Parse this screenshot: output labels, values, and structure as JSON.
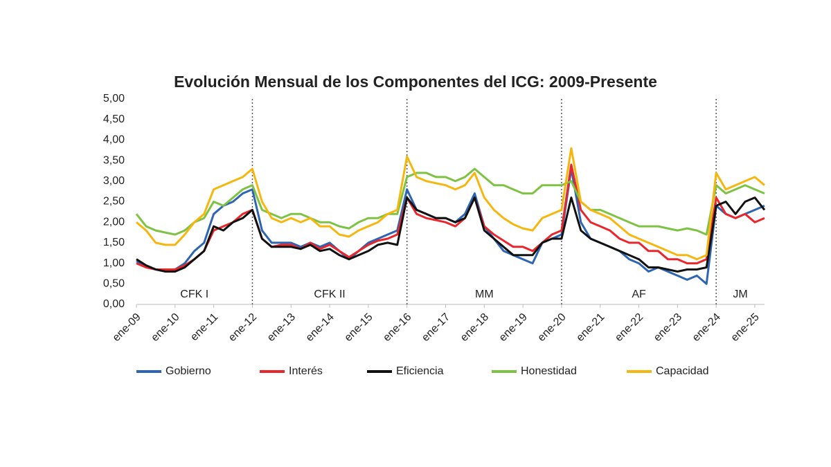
{
  "chart_data": {
    "type": "line",
    "title": "Evolución Mensual de los Componentes del ICG: 2009-Presente",
    "categories": [
      "ene-09",
      null,
      null,
      null,
      "ene-10",
      null,
      null,
      null,
      "ene-11",
      null,
      null,
      null,
      "ene-12",
      null,
      null,
      null,
      "ene-13",
      null,
      null,
      null,
      "ene-14",
      null,
      null,
      null,
      "ene-15",
      null,
      null,
      null,
      "ene-16",
      null,
      null,
      null,
      "ene-17",
      null,
      null,
      null,
      "ene-18",
      null,
      null,
      null,
      "ene-19",
      null,
      null,
      null,
      "ene-20",
      null,
      null,
      null,
      "ene-21",
      null,
      null,
      null,
      "ene-22",
      null,
      null,
      null,
      "ene-23",
      null,
      null,
      null,
      "ene-24",
      null,
      null,
      null,
      "ene-25",
      null
    ],
    "series": [
      {
        "name": "Gobierno",
        "color": "#2e64b4",
        "values": [
          1.05,
          0.95,
          0.85,
          0.85,
          0.85,
          1.0,
          1.3,
          1.5,
          2.2,
          2.4,
          2.5,
          2.7,
          2.8,
          1.8,
          1.5,
          1.5,
          1.5,
          1.4,
          1.5,
          1.4,
          1.5,
          1.3,
          1.1,
          1.3,
          1.5,
          1.6,
          1.7,
          1.8,
          2.8,
          2.3,
          2.2,
          2.1,
          2.1,
          2.0,
          2.2,
          2.7,
          1.9,
          1.6,
          1.3,
          1.2,
          1.1,
          1.0,
          1.5,
          1.6,
          1.7,
          3.3,
          2.0,
          1.6,
          1.5,
          1.4,
          1.3,
          1.1,
          1.0,
          0.8,
          0.9,
          0.8,
          0.7,
          0.6,
          0.7,
          0.5,
          2.4,
          2.2,
          2.1,
          2.2,
          2.3,
          2.4
        ]
      },
      {
        "name": "Interés",
        "color": "#e8262b",
        "values": [
          1.0,
          0.9,
          0.85,
          0.85,
          0.85,
          0.95,
          1.1,
          1.3,
          1.8,
          1.9,
          2.0,
          2.2,
          2.3,
          1.6,
          1.4,
          1.45,
          1.45,
          1.35,
          1.5,
          1.35,
          1.45,
          1.3,
          1.15,
          1.3,
          1.45,
          1.55,
          1.6,
          1.7,
          2.6,
          2.2,
          2.1,
          2.05,
          2.0,
          1.9,
          2.1,
          2.6,
          1.9,
          1.7,
          1.55,
          1.4,
          1.4,
          1.3,
          1.5,
          1.7,
          1.8,
          3.4,
          2.3,
          2.0,
          1.9,
          1.8,
          1.6,
          1.5,
          1.5,
          1.3,
          1.3,
          1.1,
          1.1,
          1.0,
          1.0,
          1.1,
          2.6,
          2.2,
          2.1,
          2.2,
          2.0,
          2.1
        ]
      },
      {
        "name": "Eficiencia",
        "color": "#111111",
        "values": [
          1.1,
          0.95,
          0.85,
          0.8,
          0.8,
          0.9,
          1.1,
          1.3,
          1.9,
          1.8,
          2.0,
          2.1,
          2.3,
          1.6,
          1.4,
          1.4,
          1.4,
          1.35,
          1.45,
          1.3,
          1.35,
          1.2,
          1.1,
          1.2,
          1.3,
          1.45,
          1.5,
          1.45,
          2.6,
          2.3,
          2.2,
          2.1,
          2.1,
          2.0,
          2.1,
          2.6,
          1.8,
          1.6,
          1.4,
          1.2,
          1.2,
          1.2,
          1.5,
          1.6,
          1.6,
          2.6,
          1.8,
          1.6,
          1.5,
          1.4,
          1.3,
          1.2,
          1.1,
          0.9,
          0.9,
          0.85,
          0.8,
          0.85,
          0.85,
          0.9,
          2.4,
          2.5,
          2.2,
          2.5,
          2.6,
          2.3
        ]
      },
      {
        "name": "Honestidad",
        "color": "#7dc242",
        "values": [
          2.2,
          1.9,
          1.8,
          1.75,
          1.7,
          1.8,
          2.0,
          2.1,
          2.5,
          2.4,
          2.6,
          2.8,
          2.9,
          2.3,
          2.2,
          2.1,
          2.2,
          2.2,
          2.1,
          2.0,
          2.0,
          1.9,
          1.85,
          2.0,
          2.1,
          2.1,
          2.2,
          2.2,
          3.1,
          3.2,
          3.2,
          3.1,
          3.1,
          3.0,
          3.1,
          3.3,
          3.1,
          2.9,
          2.9,
          2.8,
          2.7,
          2.7,
          2.9,
          2.9,
          2.9,
          3.0,
          2.5,
          2.3,
          2.3,
          2.2,
          2.1,
          2.0,
          1.9,
          1.9,
          1.9,
          1.85,
          1.8,
          1.85,
          1.8,
          1.7,
          2.9,
          2.7,
          2.8,
          2.9,
          2.8,
          2.7
        ]
      },
      {
        "name": "Capacidad",
        "color": "#f5b70f",
        "values": [
          2.0,
          1.8,
          1.5,
          1.45,
          1.45,
          1.7,
          2.0,
          2.2,
          2.8,
          2.9,
          3.0,
          3.1,
          3.3,
          2.5,
          2.1,
          2.0,
          2.1,
          2.0,
          2.1,
          1.9,
          1.9,
          1.7,
          1.65,
          1.8,
          1.9,
          2.0,
          2.2,
          2.3,
          3.6,
          3.1,
          3.0,
          2.95,
          2.9,
          2.8,
          2.9,
          3.2,
          2.6,
          2.3,
          2.1,
          1.95,
          1.85,
          1.8,
          2.1,
          2.2,
          2.3,
          3.8,
          2.5,
          2.3,
          2.2,
          2.1,
          1.9,
          1.7,
          1.6,
          1.5,
          1.4,
          1.3,
          1.2,
          1.2,
          1.1,
          1.2,
          3.2,
          2.8,
          2.9,
          3.0,
          3.1,
          2.9
        ]
      }
    ],
    "ylim": [
      0,
      5
    ],
    "yticks": [
      {
        "value": 0,
        "label": "0,00"
      },
      {
        "value": 0.5,
        "label": "0,50"
      },
      {
        "value": 1,
        "label": "1,00"
      },
      {
        "value": 1.5,
        "label": "1,50"
      },
      {
        "value": 2,
        "label": "2,00"
      },
      {
        "value": 2.5,
        "label": "2,50"
      },
      {
        "value": 3,
        "label": "3,00"
      },
      {
        "value": 3.5,
        "label": "3,50"
      },
      {
        "value": 4,
        "label": "4,00"
      },
      {
        "value": 4.5,
        "label": "4,50"
      },
      {
        "value": 5,
        "label": "5,00"
      }
    ],
    "grid": false,
    "period_breaks": [
      "ene-12",
      "ene-16",
      "ene-20",
      "ene-24"
    ],
    "periods": [
      "CFK I",
      "CFK II",
      "MM",
      "AF",
      "JM"
    ],
    "legend": "bottom"
  }
}
